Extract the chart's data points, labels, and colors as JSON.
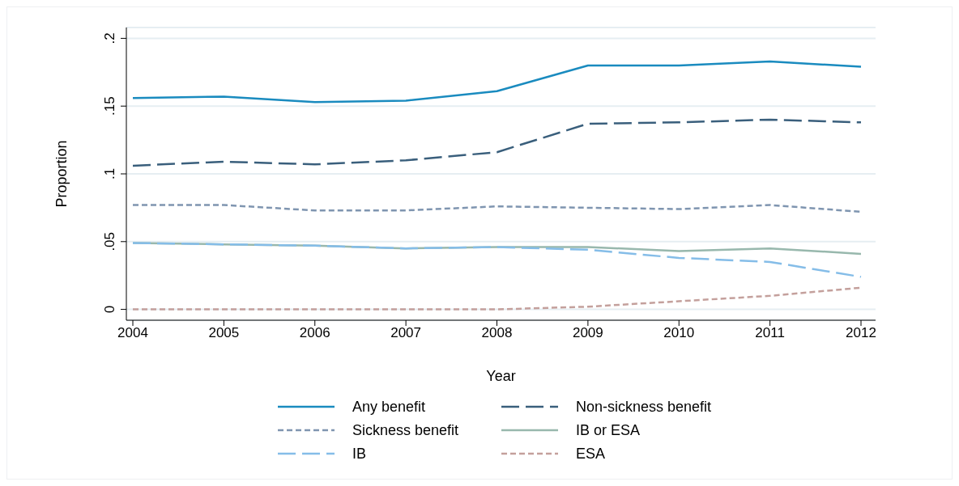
{
  "chart_data": {
    "type": "line",
    "xlabel": "Year",
    "ylabel": "Proportion",
    "categories": [
      "2004",
      "2005",
      "2006",
      "2007",
      "2008",
      "2009",
      "2010",
      "2011",
      "2012"
    ],
    "ylim": [
      -0.008,
      0.208
    ],
    "yticks": [
      0,
      {
        "value": 0.05,
        "label": ".05"
      },
      {
        "value": 0.1,
        "label": ".1"
      },
      {
        "value": 0.15,
        "label": ".15"
      },
      {
        "value": 0.2,
        "label": ".2"
      }
    ],
    "grid": "y",
    "legend": "bottom",
    "marker": "none",
    "series": [
      {
        "name": "Any benefit",
        "color": "#1a8bbf",
        "line_style": "solid",
        "values": [
          0.156,
          0.157,
          0.153,
          0.154,
          0.161,
          0.18,
          0.18,
          0.183,
          0.179
        ]
      },
      {
        "name": "Non-sickness benefit",
        "color": "#3a5f7c",
        "line_style": "dashed",
        "values": [
          0.106,
          0.109,
          0.107,
          0.11,
          0.116,
          0.137,
          0.138,
          0.14,
          0.138
        ]
      },
      {
        "name": "Sickness benefit",
        "color": "#7f95b0",
        "line_style": "dotted",
        "values": [
          0.077,
          0.077,
          0.073,
          0.073,
          0.076,
          0.075,
          0.074,
          0.077,
          0.072
        ]
      },
      {
        "name": "IB or ESA",
        "color": "#98b8ad",
        "line_style": "solid",
        "values": [
          0.049,
          0.048,
          0.047,
          0.045,
          0.046,
          0.046,
          0.043,
          0.045,
          0.041
        ]
      },
      {
        "name": "IB",
        "color": "#85bde8",
        "line_style": "dashed",
        "values": [
          0.049,
          0.048,
          0.047,
          0.045,
          0.046,
          0.044,
          0.038,
          0.035,
          0.024
        ]
      },
      {
        "name": "ESA",
        "color": "#c4a09c",
        "line_style": "dotted",
        "values": [
          0,
          0,
          0,
          0,
          0,
          0.002,
          0.006,
          0.01,
          0.016
        ]
      }
    ]
  }
}
